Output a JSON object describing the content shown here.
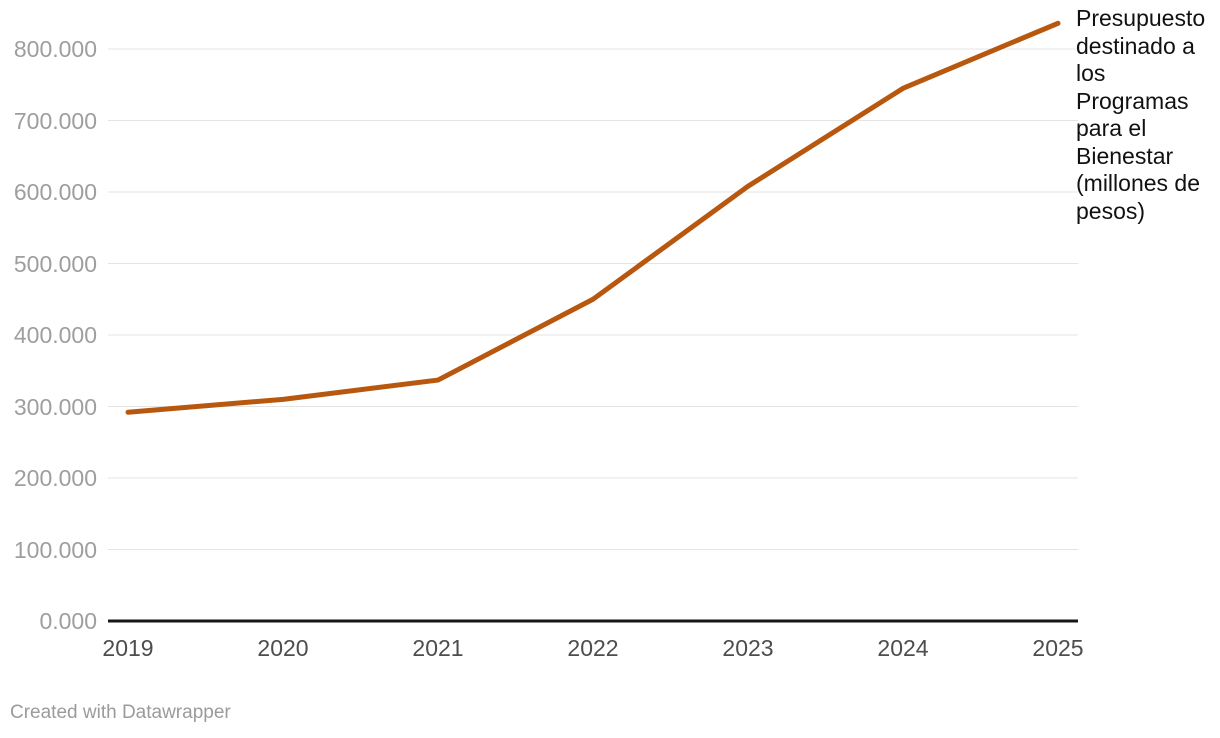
{
  "chart_data": {
    "type": "line",
    "title": "",
    "xlabel": "",
    "ylabel": "",
    "categories": [
      "2019",
      "2020",
      "2021",
      "2022",
      "2023",
      "2024",
      "2025"
    ],
    "series": [
      {
        "name": "Presupuesto destinado a los Programas para el Bienestar (millones de pesos)",
        "values": [
          292000,
          310000,
          337000,
          450000,
          608000,
          745000,
          836000
        ]
      }
    ],
    "series_label": "Presupuesto destinado a los Programas para el Bienestar (millones de pesos)",
    "ylim": [
      0,
      800000
    ],
    "y_ticks": [
      {
        "value": 0,
        "label": "0.000"
      },
      {
        "value": 100000,
        "label": "100.000"
      },
      {
        "value": 200000,
        "label": "200.000"
      },
      {
        "value": 300000,
        "label": "300.000"
      },
      {
        "value": 400000,
        "label": "400.000"
      },
      {
        "value": 500000,
        "label": "500.000"
      },
      {
        "value": 600000,
        "label": "600.000"
      },
      {
        "value": 700000,
        "label": "700.000"
      },
      {
        "value": 800000,
        "label": "800.000"
      }
    ],
    "grid": "horizontal-only",
    "legend_position": "right-of-line-end",
    "colors": {
      "line": "#b8570e",
      "grid": "#e4e4e4",
      "axis": "#161616",
      "y_tick_text": "#9e9e9e",
      "x_tick_text": "#4d4d4d",
      "annotation_text": "#111111",
      "footer_text": "#9b9b9b",
      "background": "#ffffff"
    }
  },
  "footer": {
    "attribution": "Created with Datawrapper"
  }
}
